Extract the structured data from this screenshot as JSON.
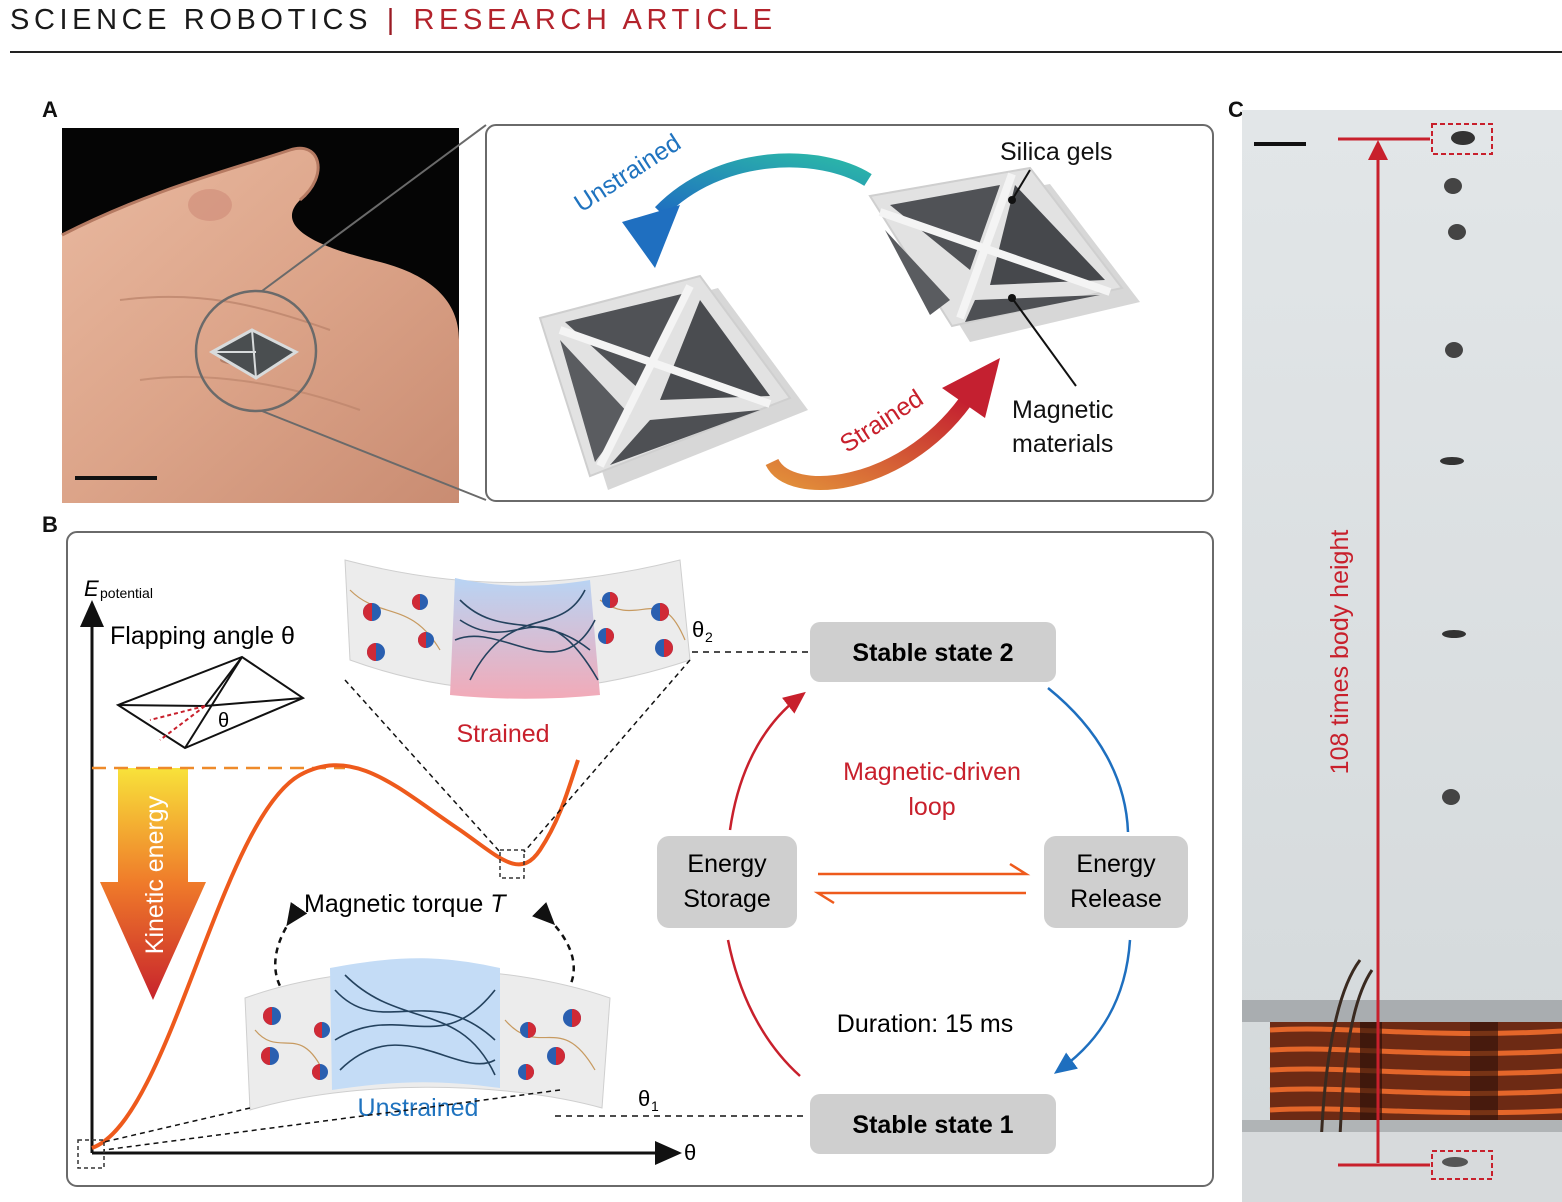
{
  "header": {
    "journal": "SCIENCE ROBOTICS",
    "separator": "|",
    "article_type": "RESEARCH ARTICLE"
  },
  "panel_labels": {
    "a": "A",
    "b": "B",
    "c": "C"
  },
  "panel_a": {
    "silica_gels": "Silica gels",
    "magnetic_line1": "Magnetic",
    "magnetic_line2": "materials",
    "unstrained_arrow": "Unstrained",
    "strained_arrow": "Strained"
  },
  "panel_b": {
    "y_axis_symbol": "E",
    "y_axis_subscript": "potential",
    "x_axis_label": "θ",
    "flapping_angle": "Flapping angle θ",
    "theta": "θ",
    "theta2_symbol": "θ",
    "theta2_sub": "2",
    "theta1_symbol": "θ",
    "theta1_sub": "1",
    "kinetic_energy": "Kinetic energy",
    "strained": "Strained",
    "unstrained": "Unstrained",
    "magnetic_torque": "Magnetic torque ",
    "torque_symbol": "T",
    "stable_state_2": "Stable state 2",
    "stable_state_1": "Stable state 1",
    "loop_line1": "Magnetic-driven",
    "loop_line2": "loop",
    "energy_storage_line1": "Energy",
    "energy_storage_line2": "Storage",
    "energy_release_line1": "Energy",
    "energy_release_line2": "Release",
    "duration": "Duration: 15 ms"
  },
  "panel_c": {
    "height_label": "108 times body height"
  },
  "colors": {
    "accent_red": "#c8202c",
    "curve_orange": "#ee5a1c",
    "loop_blue": "#1e6fbf",
    "box_gray": "#cfcfcf"
  }
}
